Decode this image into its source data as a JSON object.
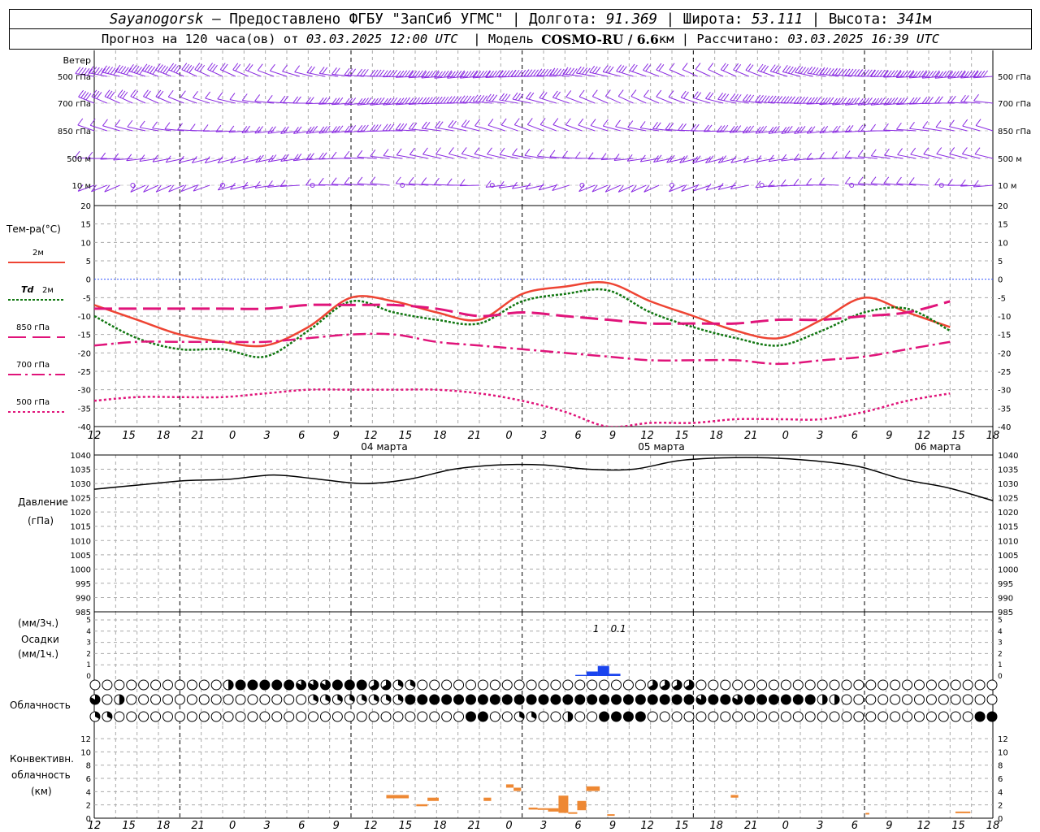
{
  "header": {
    "station": "Sayanogorsk",
    "provider": "— Предоставлено ФГБУ \"ЗапСиб УГМС\"",
    "lon_label": "| Долгота:",
    "lon": "91.369",
    "lat_label": "| Широта:",
    "lat": "53.111",
    "alt_label": "| Высота:",
    "alt": "341",
    "alt_unit": "м",
    "forecast_prefix": "Прогноз на 120 часа(ов) от",
    "forecast_time": "03.03.2025 12:00 UTC",
    "model_label": "| Модель",
    "model": "COSMO-RU / 6.6",
    "model_unit": "км",
    "calc_label": "| Рассчитано:",
    "calc_time": "03.03.2025 16:39 UTC"
  },
  "colors": {
    "t2m": "#ee4433",
    "td2m": "#117711",
    "t850": "#e0147a",
    "wind": "#8a2be2",
    "precip": "#1a44ee",
    "conv": "#ee8833",
    "pressure": "#000000",
    "zero": "#3355ff"
  },
  "chart_data": [
    {
      "type": "wind_barbs",
      "title": "Ветер",
      "levels": [
        "500 гПа",
        "700 гПа",
        "850 гПа",
        "500 м",
        "10 м"
      ]
    },
    {
      "type": "line",
      "title": "Тем-ра(°C)",
      "ylim": [
        -40,
        20
      ],
      "yticks": [
        20,
        15,
        10,
        5,
        0,
        -5,
        -10,
        -15,
        -20,
        -25,
        -30,
        -35,
        -40
      ],
      "xhours": [
        0,
        6,
        12,
        18,
        24,
        30,
        36,
        42,
        48,
        54,
        60,
        66,
        72,
        78,
        84,
        90,
        96,
        102,
        108,
        114,
        120
      ],
      "series": [
        {
          "name": "2м",
          "key": "t2m",
          "values": [
            -7,
            -11,
            -15,
            -17,
            -18,
            -13,
            -5,
            -6,
            -9,
            -11,
            -4,
            -2,
            -1,
            -6,
            -10,
            -14,
            -16,
            -11,
            -5,
            -9,
            -13
          ]
        },
        {
          "name": "Td 2м",
          "key": "td2m",
          "values": [
            -10,
            -16,
            -19,
            -19,
            -21,
            -14,
            -6,
            -9,
            -11,
            -12,
            -6,
            -4,
            -3,
            -9,
            -13,
            -16,
            -18,
            -14,
            -9,
            -8,
            -14
          ]
        },
        {
          "name": "850 гПа",
          "key": "t850",
          "values": [
            -8,
            -8,
            -8,
            -8,
            -8,
            -7,
            -7,
            -7,
            -8,
            -10,
            -9,
            -10,
            -11,
            -12,
            -12,
            -12,
            -11,
            -11,
            -10,
            -9,
            -6
          ]
        },
        {
          "name": "700 гПа",
          "key": "t700",
          "values": [
            -18,
            -17,
            -17,
            -17,
            -17,
            -16,
            -15,
            -15,
            -17,
            -18,
            -19,
            -20,
            -21,
            -22,
            -22,
            -22,
            -23,
            -22,
            -21,
            -19,
            -17
          ]
        },
        {
          "name": "500 гПа",
          "key": "t500",
          "values": [
            -33,
            -32,
            -32,
            -32,
            -31,
            -30,
            -30,
            -30,
            -30,
            -31,
            -33,
            -36,
            -40,
            -39,
            -39,
            -38,
            -38,
            -38,
            -36,
            -33,
            -31
          ]
        }
      ]
    },
    {
      "type": "line",
      "title": "Давление",
      "ylabel": "(гПа)",
      "ylim": [
        985,
        1040
      ],
      "yticks": [
        1040,
        1035,
        1030,
        1025,
        1020,
        1015,
        1010,
        1005,
        1000,
        995,
        990,
        985
      ],
      "xhours": [
        0,
        6,
        12,
        18,
        24,
        30,
        36,
        42,
        48,
        54,
        60,
        66,
        72,
        78,
        84,
        90,
        96,
        102,
        108,
        114,
        120
      ],
      "series": [
        {
          "name": "Давление",
          "values": [
            1028,
            1029.5,
            1031,
            1031.5,
            1033,
            1031.5,
            1030,
            1031.5,
            1035,
            1036.5,
            1036.5,
            1035,
            1035,
            1038,
            1039,
            1039,
            1038,
            1036,
            1031.5,
            1028.5,
            1024
          ]
        }
      ]
    },
    {
      "type": "bar",
      "title": "Осадки",
      "ylabel": "(мм/3ч.)",
      "ylabel2": "(мм/1ч.)",
      "ylim": [
        0,
        5
      ],
      "yticks": [
        5,
        4,
        3,
        2,
        1,
        0
      ],
      "bars": [
        {
          "hour": 65,
          "value": 0.1
        },
        {
          "hour": 66.5,
          "value": 0.4
        },
        {
          "hour": 68,
          "value": 0.9
        },
        {
          "hour": 69.5,
          "value": 0.2
        }
      ],
      "annotations": [
        {
          "hour": 67,
          "text": "1"
        },
        {
          "hour": 70,
          "text": "0.1"
        }
      ]
    },
    {
      "type": "symbols",
      "title": "Облачность",
      "rows": [
        {
          "name": "top",
          "values": "00000000000000000336666666656553666664442220000000000000000000000000000000444444600000000000000000000000000000000000000006"
        },
        {
          "name": "mid",
          "values": "50330000000000000000000000000022222222222222666666666666666666666666666666666666666665566556666666666633300000000000000000000005"
        },
        {
          "name": "low",
          "values": "2200000000000000000000000000000000000000000000000000006666000222000003000666666600000000000000000000000000000000000000000000000066666"
        }
      ]
    },
    {
      "type": "bar",
      "title": "Конвективн. облачность",
      "ylabel": "(км)",
      "ylim": [
        0,
        13
      ],
      "yticks": [
        12,
        10,
        8,
        6,
        4,
        2,
        0
      ],
      "segments": [
        {
          "h0": 39,
          "h1": 42,
          "bottom": 3,
          "top": 3.5
        },
        {
          "h0": 43,
          "h1": 44.5,
          "bottom": 1.8,
          "top": 2.1
        },
        {
          "h0": 44.5,
          "h1": 46,
          "bottom": 2.6,
          "top": 3.1
        },
        {
          "h0": 52,
          "h1": 53,
          "bottom": 2.6,
          "top": 3.1
        },
        {
          "h0": 55,
          "h1": 56,
          "bottom": 4.6,
          "top": 5.1
        },
        {
          "h0": 56,
          "h1": 57,
          "bottom": 4.1,
          "top": 4.6
        },
        {
          "h0": 58,
          "h1": 59.2,
          "bottom": 1.3,
          "top": 1.6
        },
        {
          "h0": 59.2,
          "h1": 60.6,
          "bottom": 1.3,
          "top": 1.5
        },
        {
          "h0": 60.6,
          "h1": 62,
          "bottom": 1.0,
          "top": 1.5
        },
        {
          "h0": 62,
          "h1": 63.3,
          "bottom": 0.8,
          "top": 3.4
        },
        {
          "h0": 63.3,
          "h1": 64.5,
          "bottom": 0.8,
          "top": 0.9
        },
        {
          "h0": 64.5,
          "h1": 65.7,
          "bottom": 1.2,
          "top": 2.6
        },
        {
          "h0": 65.7,
          "h1": 67.5,
          "bottom": 4.1,
          "top": 4.8
        },
        {
          "h0": 68.5,
          "h1": 69.5,
          "bottom": 0.5,
          "top": 0.6
        },
        {
          "h0": 85,
          "h1": 86,
          "bottom": 3.1,
          "top": 3.5
        },
        {
          "h0": 103,
          "h1": 103.5,
          "bottom": 0.7,
          "top": 0.8
        },
        {
          "h0": 115,
          "h1": 117,
          "bottom": 0.9,
          "top": 1.0
        }
      ]
    }
  ],
  "axis": {
    "time_labels": [
      "12",
      "15",
      "18",
      "21",
      "0",
      "3",
      "6",
      "9",
      "12",
      "15",
      "18",
      "21",
      "0",
      "3",
      "6",
      "9",
      "12",
      "15",
      "18",
      "21",
      "0",
      "3",
      "6",
      "9",
      "12",
      "15",
      "18"
    ],
    "day_labels": [
      {
        "hour": 18,
        "text": "04 марта"
      },
      {
        "hour": 42,
        "text": "05 марта"
      },
      {
        "hour": 66,
        "text": "06 марта"
      }
    ]
  },
  "legend": {
    "t2m": "2м",
    "td": "Td",
    "td2m": "2м",
    "t850": "850 гПа",
    "t700": "700 гПа",
    "t500": "500 гПа"
  }
}
